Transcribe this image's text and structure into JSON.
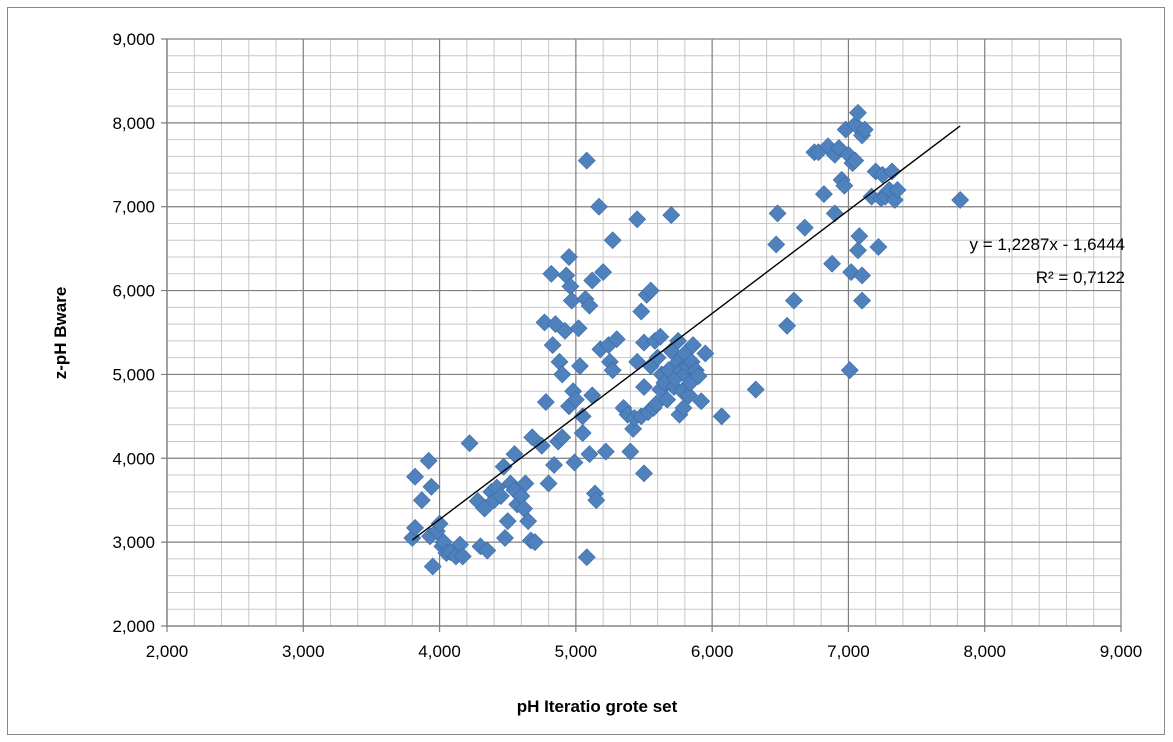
{
  "chart_data": {
    "type": "scatter",
    "xlabel": "pH Iteratio grote set",
    "ylabel": "z-pH Bware",
    "xlim": [
      2,
      9
    ],
    "ylim": [
      2,
      9
    ],
    "x_major_step": 1,
    "y_major_step": 1,
    "x_minor_step": 0.2,
    "y_minor_step": 0.2,
    "grid": true,
    "x_tick_labels": [
      "2,000",
      "3,000",
      "4,000",
      "5,000",
      "6,000",
      "7,000",
      "8,000",
      "9,000"
    ],
    "y_tick_labels": [
      "2,000",
      "3,000",
      "4,000",
      "5,000",
      "6,000",
      "7,000",
      "8,000",
      "9,000"
    ],
    "marker_color": "#4F81BD",
    "marker_shape": "diamond",
    "trendline": {
      "type": "linear",
      "slope": 1.2287,
      "intercept": -1.6444,
      "x_range": [
        3.8,
        7.82
      ],
      "color": "#000000",
      "equation_label": "y = 1,2287x - 1,6444",
      "r2_label": "R² = 0,7122"
    },
    "points": [
      [
        3.82,
        3.78
      ],
      [
        3.8,
        3.05
      ],
      [
        3.82,
        3.17
      ],
      [
        3.87,
        3.5
      ],
      [
        3.92,
        3.97
      ],
      [
        3.94,
        3.66
      ],
      [
        3.95,
        2.71
      ],
      [
        3.93,
        3.07
      ],
      [
        3.98,
        3.13
      ],
      [
        4.0,
        3.22
      ],
      [
        4.02,
        2.95
      ],
      [
        4.03,
        3.0
      ],
      [
        4.05,
        2.87
      ],
      [
        4.08,
        2.88
      ],
      [
        4.12,
        2.83
      ],
      [
        4.15,
        2.97
      ],
      [
        4.17,
        2.83
      ],
      [
        4.22,
        4.18
      ],
      [
        4.28,
        3.49
      ],
      [
        4.3,
        2.95
      ],
      [
        4.33,
        3.4
      ],
      [
        4.35,
        2.9
      ],
      [
        4.38,
        3.6
      ],
      [
        4.4,
        3.5
      ],
      [
        4.42,
        3.65
      ],
      [
        4.45,
        3.55
      ],
      [
        4.47,
        3.9
      ],
      [
        4.48,
        3.05
      ],
      [
        4.5,
        3.25
      ],
      [
        4.52,
        3.7
      ],
      [
        4.55,
        4.05
      ],
      [
        4.55,
        3.62
      ],
      [
        4.57,
        3.45
      ],
      [
        4.6,
        3.55
      ],
      [
        4.62,
        3.4
      ],
      [
        4.63,
        3.7
      ],
      [
        4.65,
        3.25
      ],
      [
        4.67,
        3.02
      ],
      [
        4.68,
        4.25
      ],
      [
        4.7,
        3.0
      ],
      [
        4.75,
        4.15
      ],
      [
        4.77,
        5.62
      ],
      [
        4.78,
        4.67
      ],
      [
        4.8,
        3.7
      ],
      [
        4.82,
        6.2
      ],
      [
        4.83,
        5.35
      ],
      [
        4.84,
        3.92
      ],
      [
        4.85,
        5.6
      ],
      [
        4.87,
        4.2
      ],
      [
        4.88,
        5.15
      ],
      [
        4.9,
        4.25
      ],
      [
        4.9,
        5.0
      ],
      [
        4.92,
        5.52
      ],
      [
        4.93,
        6.18
      ],
      [
        4.95,
        6.4
      ],
      [
        4.95,
        4.62
      ],
      [
        4.96,
        6.05
      ],
      [
        4.97,
        5.88
      ],
      [
        4.98,
        4.8
      ],
      [
        4.99,
        3.95
      ],
      [
        5.0,
        4.7
      ],
      [
        5.02,
        5.55
      ],
      [
        5.03,
        5.1
      ],
      [
        5.05,
        4.3
      ],
      [
        5.05,
        4.5
      ],
      [
        5.07,
        5.9
      ],
      [
        5.08,
        2.82
      ],
      [
        5.08,
        7.55
      ],
      [
        5.1,
        4.05
      ],
      [
        5.1,
        5.82
      ],
      [
        5.12,
        6.12
      ],
      [
        5.12,
        4.75
      ],
      [
        5.14,
        3.58
      ],
      [
        5.15,
        3.5
      ],
      [
        5.17,
        7.0
      ],
      [
        5.18,
        5.3
      ],
      [
        5.2,
        6.22
      ],
      [
        5.22,
        4.08
      ],
      [
        5.24,
        5.35
      ],
      [
        5.25,
        5.15
      ],
      [
        5.27,
        6.6
      ],
      [
        5.27,
        5.05
      ],
      [
        5.3,
        5.42
      ],
      [
        5.35,
        4.6
      ],
      [
        5.38,
        4.52
      ],
      [
        5.4,
        4.08
      ],
      [
        5.42,
        4.35
      ],
      [
        5.43,
        4.48
      ],
      [
        5.45,
        5.15
      ],
      [
        5.45,
        6.85
      ],
      [
        5.48,
        5.75
      ],
      [
        5.48,
        4.5
      ],
      [
        5.5,
        3.82
      ],
      [
        5.5,
        5.38
      ],
      [
        5.5,
        4.85
      ],
      [
        5.52,
        5.95
      ],
      [
        5.53,
        4.55
      ],
      [
        5.55,
        6.0
      ],
      [
        5.55,
        5.1
      ],
      [
        5.57,
        4.6
      ],
      [
        5.58,
        5.4
      ],
      [
        5.59,
        4.65
      ],
      [
        5.6,
        5.2
      ],
      [
        5.62,
        5.45
      ],
      [
        5.62,
        4.82
      ],
      [
        5.63,
        5.0
      ],
      [
        5.65,
        4.9
      ],
      [
        5.67,
        4.7
      ],
      [
        5.68,
        5.05
      ],
      [
        5.7,
        6.9
      ],
      [
        5.7,
        5.28
      ],
      [
        5.72,
        4.85
      ],
      [
        5.73,
        4.95
      ],
      [
        5.75,
        5.4
      ],
      [
        5.75,
        5.15
      ],
      [
        5.76,
        4.52
      ],
      [
        5.77,
        5.05
      ],
      [
        5.78,
        4.8
      ],
      [
        5.79,
        4.6
      ],
      [
        5.8,
        5.25
      ],
      [
        5.8,
        5.0
      ],
      [
        5.82,
        5.1
      ],
      [
        5.83,
        4.75
      ],
      [
        5.84,
        4.9
      ],
      [
        5.85,
        5.15
      ],
      [
        5.86,
        5.35
      ],
      [
        5.88,
        5.05
      ],
      [
        5.9,
        4.98
      ],
      [
        5.92,
        4.68
      ],
      [
        5.95,
        5.25
      ],
      [
        6.07,
        4.5
      ],
      [
        6.32,
        4.82
      ],
      [
        6.47,
        6.55
      ],
      [
        6.48,
        6.92
      ],
      [
        6.55,
        5.58
      ],
      [
        6.6,
        5.88
      ],
      [
        6.68,
        6.75
      ],
      [
        6.75,
        7.65
      ],
      [
        6.78,
        7.65
      ],
      [
        6.82,
        7.15
      ],
      [
        6.85,
        7.72
      ],
      [
        6.88,
        6.32
      ],
      [
        6.9,
        7.62
      ],
      [
        6.9,
        6.92
      ],
      [
        6.93,
        7.7
      ],
      [
        6.95,
        7.32
      ],
      [
        6.97,
        7.25
      ],
      [
        6.98,
        7.92
      ],
      [
        7.0,
        7.62
      ],
      [
        7.01,
        5.05
      ],
      [
        7.02,
        6.22
      ],
      [
        7.03,
        7.52
      ],
      [
        7.05,
        7.55
      ],
      [
        7.05,
        7.98
      ],
      [
        7.07,
        8.12
      ],
      [
        7.07,
        6.48
      ],
      [
        7.08,
        6.65
      ],
      [
        7.1,
        6.18
      ],
      [
        7.1,
        5.88
      ],
      [
        7.1,
        7.85
      ],
      [
        7.12,
        7.92
      ],
      [
        7.17,
        7.12
      ],
      [
        7.2,
        7.42
      ],
      [
        7.22,
        6.52
      ],
      [
        7.24,
        7.1
      ],
      [
        7.25,
        7.38
      ],
      [
        7.27,
        7.12
      ],
      [
        7.3,
        7.2
      ],
      [
        7.32,
        7.42
      ],
      [
        7.34,
        7.08
      ],
      [
        7.36,
        7.2
      ],
      [
        7.82,
        7.08
      ]
    ]
  }
}
